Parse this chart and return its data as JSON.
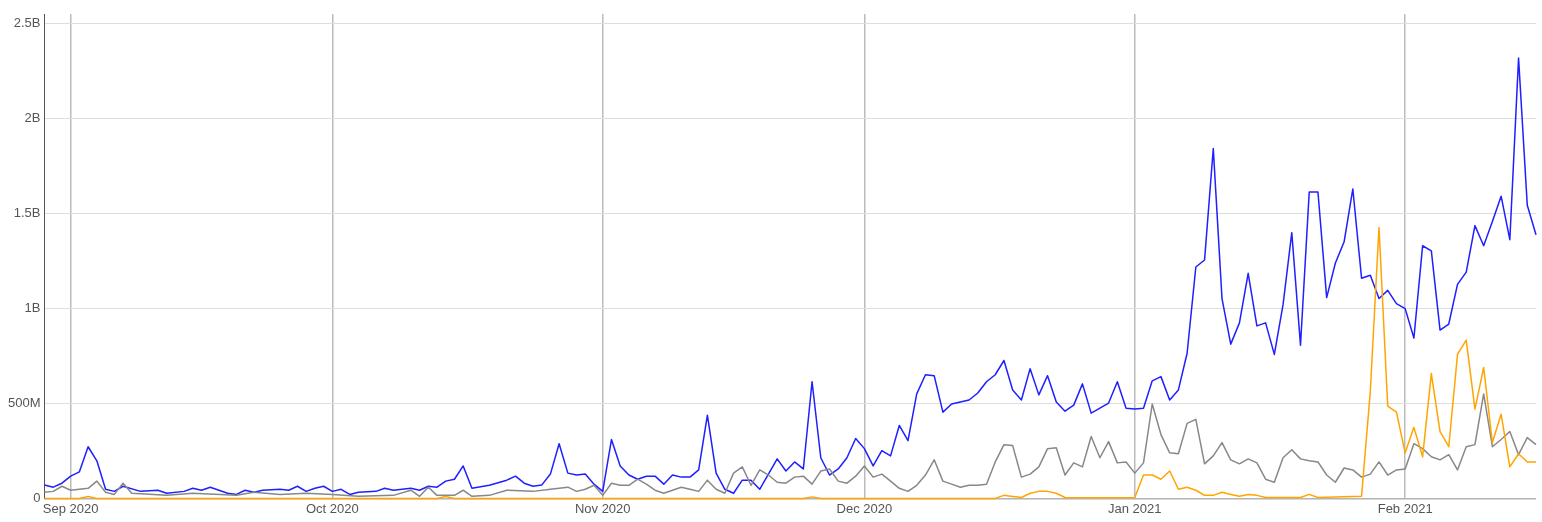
{
  "chart_data": {
    "type": "line",
    "grid": true,
    "xlim": [
      "2020-08-29",
      "2021-02-16"
    ],
    "xticks": [
      {
        "value": "2020-09-01",
        "label": "Sep 2020"
      },
      {
        "value": "2020-10-01",
        "label": "Oct 2020"
      },
      {
        "value": "2020-11-01",
        "label": "Nov 2020"
      },
      {
        "value": "2020-12-01",
        "label": "Dec 2020"
      },
      {
        "value": "2021-01-01",
        "label": "Jan 2021"
      },
      {
        "value": "2021-02-01",
        "label": "Feb 2021"
      }
    ],
    "ylim": [
      0,
      2550000000
    ],
    "yticks": [
      0,
      {
        "value": 500000000,
        "label": "500M"
      },
      {
        "value": 1000000000,
        "label": "1B"
      },
      {
        "value": 1500000000,
        "label": "1.5B"
      },
      {
        "value": 2000000000,
        "label": "2B"
      },
      {
        "value": 2500000000,
        "label": "2.5B"
      }
    ],
    "series": [
      {
        "color": "#ffa500",
        "x": [
          "2020-08-29",
          "2020-09-02",
          "2020-09-03",
          "2020-09-04",
          "2020-10-13",
          "2020-10-14",
          "2020-10-15",
          "2020-11-24",
          "2020-11-25",
          "2020-11-26",
          "2020-12-16",
          "2020-12-17",
          "2020-12-18",
          "2020-12-19",
          "2020-12-20",
          "2020-12-21",
          "2020-12-22",
          "2020-12-23",
          "2020-12-24",
          "2020-12-28",
          "2021-01-01",
          "2021-01-02",
          "2021-01-03",
          "2021-01-04",
          "2021-01-05",
          "2021-01-06",
          "2021-01-07",
          "2021-01-08",
          "2021-01-09",
          "2021-01-10",
          "2021-01-11",
          "2021-01-12",
          "2021-01-13",
          "2021-01-14",
          "2021-01-15",
          "2021-01-16",
          "2021-01-20",
          "2021-01-21",
          "2021-01-22",
          "2021-01-27",
          "2021-01-28",
          "2021-01-29",
          "2021-01-30",
          "2021-01-31",
          "2021-02-01",
          "2021-02-02",
          "2021-02-03",
          "2021-02-04",
          "2021-02-05",
          "2021-02-06",
          "2021-02-07",
          "2021-02-08",
          "2021-02-09",
          "2021-02-10",
          "2021-02-11",
          "2021-02-12",
          "2021-02-13",
          "2021-02-14",
          "2021-02-15",
          "2021-02-16"
        ],
        "values": [
          0,
          0,
          10000000,
          0,
          0,
          10000000,
          0,
          0,
          8000000,
          0,
          0,
          16000000,
          10000000,
          5000000,
          27000000,
          37000000,
          37000000,
          27000000,
          5000000,
          3000000,
          5000000,
          123000000,
          123000000,
          101000000,
          144000000,
          48000000,
          59000000,
          43000000,
          16000000,
          16000000,
          32000000,
          21000000,
          11000000,
          21000000,
          16000000,
          5000000,
          5000000,
          21000000,
          5000000,
          11000000,
          561000000,
          1426000000,
          486000000,
          454000000,
          240000000,
          374000000,
          219000000,
          657000000,
          352000000,
          272000000,
          758000000,
          833000000,
          470000000,
          689000000,
          294000000,
          443000000,
          166000000,
          235000000,
          192000000,
          192000000
        ]
      },
      {
        "color": "#888888",
        "x": [
          "2020-08-29",
          "2020-08-30",
          "2020-08-31",
          "2020-09-01",
          "2020-09-03",
          "2020-09-04",
          "2020-09-05",
          "2020-09-06",
          "2020-09-07",
          "2020-09-08",
          "2020-09-12",
          "2020-09-15",
          "2020-09-20",
          "2020-09-22",
          "2020-09-25",
          "2020-09-28",
          "2020-10-01",
          "2020-10-04",
          "2020-10-08",
          "2020-10-10",
          "2020-10-11",
          "2020-10-12",
          "2020-10-13",
          "2020-10-15",
          "2020-10-16",
          "2020-10-17",
          "2020-10-19",
          "2020-10-21",
          "2020-10-24",
          "2020-10-26",
          "2020-10-28",
          "2020-10-29",
          "2020-10-30",
          "2020-10-31",
          "2020-11-01",
          "2020-11-02",
          "2020-11-03",
          "2020-11-04",
          "2020-11-05",
          "2020-11-06",
          "2020-11-07",
          "2020-11-08",
          "2020-11-09",
          "2020-11-10",
          "2020-11-11",
          "2020-11-12",
          "2020-11-13",
          "2020-11-14",
          "2020-11-15",
          "2020-11-16",
          "2020-11-17",
          "2020-11-18",
          "2020-11-19",
          "2020-11-20",
          "2020-11-21",
          "2020-11-22",
          "2020-11-23",
          "2020-11-24",
          "2020-11-25",
          "2020-11-26",
          "2020-11-27",
          "2020-11-28",
          "2020-11-29",
          "2020-11-30",
          "2020-12-01",
          "2020-12-02",
          "2020-12-03",
          "2020-12-04",
          "2020-12-05",
          "2020-12-06",
          "2020-12-07",
          "2020-12-08",
          "2020-12-09",
          "2020-12-10",
          "2020-12-11",
          "2020-12-12",
          "2020-12-13",
          "2020-12-14",
          "2020-12-15",
          "2020-12-16",
          "2020-12-17",
          "2020-12-18",
          "2020-12-19",
          "2020-12-20",
          "2020-12-21",
          "2020-12-22",
          "2020-12-23",
          "2020-12-24",
          "2020-12-25",
          "2020-12-26",
          "2020-12-27",
          "2020-12-28",
          "2020-12-29",
          "2020-12-30",
          "2020-12-31",
          "2021-01-01",
          "2021-01-02",
          "2021-01-03",
          "2021-01-04",
          "2021-01-05",
          "2021-01-06",
          "2021-01-07",
          "2021-01-08",
          "2021-01-09",
          "2021-01-10",
          "2021-01-11",
          "2021-01-12",
          "2021-01-13",
          "2021-01-14",
          "2021-01-15",
          "2021-01-16",
          "2021-01-17",
          "2021-01-18",
          "2021-01-19",
          "2021-01-20",
          "2021-01-21",
          "2021-01-22",
          "2021-01-23",
          "2021-01-24",
          "2021-01-25",
          "2021-01-26",
          "2021-01-27",
          "2021-01-28",
          "2021-01-29",
          "2021-01-30",
          "2021-01-31",
          "2021-02-01",
          "2021-02-02",
          "2021-02-03",
          "2021-02-04",
          "2021-02-05",
          "2021-02-06",
          "2021-02-07",
          "2021-02-08",
          "2021-02-09",
          "2021-02-10",
          "2021-02-11",
          "2021-02-12",
          "2021-02-13",
          "2021-02-14",
          "2021-02-15",
          "2021-02-16"
        ],
        "values": [
          32000000,
          37000000,
          64000000,
          43000000,
          53000000,
          91000000,
          32000000,
          21000000,
          80000000,
          27000000,
          16000000,
          27000000,
          16000000,
          32000000,
          21000000,
          27000000,
          21000000,
          11000000,
          16000000,
          43000000,
          11000000,
          59000000,
          16000000,
          16000000,
          43000000,
          11000000,
          16000000,
          43000000,
          37000000,
          48000000,
          59000000,
          37000000,
          48000000,
          69000000,
          16000000,
          80000000,
          69000000,
          69000000,
          101000000,
          75000000,
          43000000,
          27000000,
          43000000,
          59000000,
          48000000,
          37000000,
          96000000,
          48000000,
          27000000,
          133000000,
          166000000,
          69000000,
          150000000,
          123000000,
          85000000,
          80000000,
          112000000,
          117000000,
          75000000,
          144000000,
          155000000,
          91000000,
          80000000,
          117000000,
          171000000,
          112000000,
          128000000,
          91000000,
          53000000,
          37000000,
          69000000,
          123000000,
          203000000,
          91000000,
          75000000,
          59000000,
          69000000,
          69000000,
          75000000,
          192000000,
          283000000,
          278000000,
          112000000,
          128000000,
          166000000,
          262000000,
          267000000,
          123000000,
          187000000,
          166000000,
          326000000,
          214000000,
          299000000,
          187000000,
          192000000,
          133000000,
          187000000,
          497000000,
          336000000,
          240000000,
          235000000,
          395000000,
          416000000,
          182000000,
          224000000,
          294000000,
          203000000,
          182000000,
          208000000,
          187000000,
          101000000,
          85000000,
          214000000,
          256000000,
          208000000,
          198000000,
          192000000,
          123000000,
          85000000,
          160000000,
          150000000,
          112000000,
          128000000,
          192000000,
          123000000,
          150000000,
          155000000,
          288000000,
          262000000,
          219000000,
          203000000,
          230000000,
          150000000,
          272000000,
          283000000,
          550000000,
          272000000,
          310000000,
          352000000,
          230000000,
          320000000,
          283000000
        ]
      },
      {
        "color": "#1f1fff",
        "x": [
          "2020-08-29",
          "2020-08-30",
          "2020-08-31",
          "2020-09-01",
          "2020-09-02",
          "2020-09-03",
          "2020-09-04",
          "2020-09-05",
          "2020-09-06",
          "2020-09-07",
          "2020-09-09",
          "2020-09-11",
          "2020-09-12",
          "2020-09-14",
          "2020-09-15",
          "2020-09-16",
          "2020-09-17",
          "2020-09-19",
          "2020-09-20",
          "2020-09-21",
          "2020-09-22",
          "2020-09-23",
          "2020-09-25",
          "2020-09-26",
          "2020-09-27",
          "2020-09-28",
          "2020-09-29",
          "2020-09-30",
          "2020-10-01",
          "2020-10-02",
          "2020-10-03",
          "2020-10-04",
          "2020-10-06",
          "2020-10-07",
          "2020-10-08",
          "2020-10-10",
          "2020-10-11",
          "2020-10-12",
          "2020-10-13",
          "2020-10-14",
          "2020-10-15",
          "2020-10-16",
          "2020-10-17",
          "2020-10-19",
          "2020-10-21",
          "2020-10-22",
          "2020-10-23",
          "2020-10-24",
          "2020-10-25",
          "2020-10-26",
          "2020-10-27",
          "2020-10-28",
          "2020-10-29",
          "2020-10-30",
          "2020-10-31",
          "2020-11-01",
          "2020-11-02",
          "2020-11-03",
          "2020-11-04",
          "2020-11-05",
          "2020-11-06",
          "2020-11-07",
          "2020-11-08",
          "2020-11-09",
          "2020-11-10",
          "2020-11-11",
          "2020-11-12",
          "2020-11-13",
          "2020-11-14",
          "2020-11-15",
          "2020-11-16",
          "2020-11-17",
          "2020-11-18",
          "2020-11-19",
          "2020-11-20",
          "2020-11-21",
          "2020-11-22",
          "2020-11-23",
          "2020-11-24",
          "2020-11-25",
          "2020-11-26",
          "2020-11-27",
          "2020-11-28",
          "2020-11-29",
          "2020-11-30",
          "2020-12-01",
          "2020-12-02",
          "2020-12-03",
          "2020-12-04",
          "2020-12-05",
          "2020-12-06",
          "2020-12-07",
          "2020-12-08",
          "2020-12-09",
          "2020-12-10",
          "2020-12-11",
          "2020-12-12",
          "2020-12-13",
          "2020-12-14",
          "2020-12-15",
          "2020-12-16",
          "2020-12-17",
          "2020-12-18",
          "2020-12-19",
          "2020-12-20",
          "2020-12-21",
          "2020-12-22",
          "2020-12-23",
          "2020-12-24",
          "2020-12-25",
          "2020-12-26",
          "2020-12-27",
          "2020-12-28",
          "2020-12-29",
          "2020-12-30",
          "2020-12-31",
          "2021-01-01",
          "2021-01-02",
          "2021-01-03",
          "2021-01-04",
          "2021-01-05",
          "2021-01-06",
          "2021-01-07",
          "2021-01-08",
          "2021-01-09",
          "2021-01-10",
          "2021-01-11",
          "2021-01-12",
          "2021-01-13",
          "2021-01-14",
          "2021-01-15",
          "2021-01-16",
          "2021-01-17",
          "2021-01-18",
          "2021-01-19",
          "2021-01-20",
          "2021-01-21",
          "2021-01-22",
          "2021-01-23",
          "2021-01-24",
          "2021-01-25",
          "2021-01-26",
          "2021-01-27",
          "2021-01-28",
          "2021-01-29",
          "2021-01-30",
          "2021-01-31",
          "2021-02-01",
          "2021-02-02",
          "2021-02-03",
          "2021-02-04",
          "2021-02-05",
          "2021-02-06",
          "2021-02-07",
          "2021-02-08",
          "2021-02-09",
          "2021-02-10",
          "2021-02-11",
          "2021-02-12",
          "2021-02-13",
          "2021-02-14",
          "2021-02-15",
          "2021-02-16"
        ],
        "values": [
          70000000,
          59000000,
          80000000,
          117000000,
          140000000,
          272000000,
          198000000,
          48000000,
          37000000,
          64000000,
          37000000,
          43000000,
          27000000,
          37000000,
          53000000,
          43000000,
          59000000,
          27000000,
          21000000,
          43000000,
          32000000,
          43000000,
          48000000,
          43000000,
          64000000,
          37000000,
          53000000,
          64000000,
          37000000,
          48000000,
          21000000,
          32000000,
          37000000,
          53000000,
          43000000,
          53000000,
          43000000,
          64000000,
          59000000,
          91000000,
          101000000,
          171000000,
          53000000,
          69000000,
          96000000,
          117000000,
          80000000,
          64000000,
          70000000,
          128000000,
          288000000,
          133000000,
          123000000,
          128000000,
          75000000,
          37000000,
          310000000,
          171000000,
          123000000,
          101000000,
          117000000,
          117000000,
          75000000,
          123000000,
          112000000,
          112000000,
          150000000,
          438000000,
          133000000,
          48000000,
          27000000,
          96000000,
          96000000,
          48000000,
          128000000,
          208000000,
          144000000,
          192000000,
          155000000,
          614000000,
          214000000,
          123000000,
          155000000,
          214000000,
          315000000,
          262000000,
          171000000,
          251000000,
          224000000,
          384000000,
          304000000,
          550000000,
          651000000,
          646000000,
          454000000,
          497000000,
          507000000,
          518000000,
          555000000,
          614000000,
          651000000,
          726000000,
          571000000,
          518000000,
          683000000,
          545000000,
          646000000,
          507000000,
          459000000,
          491000000,
          603000000,
          449000000,
          475000000,
          502000000,
          614000000,
          475000000,
          470000000,
          475000000,
          619000000,
          641000000,
          518000000,
          571000000,
          764000000,
          1218000000,
          1255000000,
          1842000000,
          1052000000,
          812000000,
          924000000,
          1185000000,
          908000000,
          924000000,
          758000000,
          1020000000,
          1399000000,
          806000000,
          1613000000,
          1613000000,
          1057000000,
          1239000000,
          1351000000,
          1629000000,
          1159000000,
          1175000000,
          1052000000,
          1095000000,
          1025000000,
          999000000,
          844000000,
          1330000000,
          1303000000,
          886000000,
          918000000,
          1127000000,
          1191000000,
          1436000000,
          1330000000,
          1458000000,
          1591000000,
          1362000000,
          2318000000,
          1543000000,
          1388000000
        ]
      }
    ]
  }
}
